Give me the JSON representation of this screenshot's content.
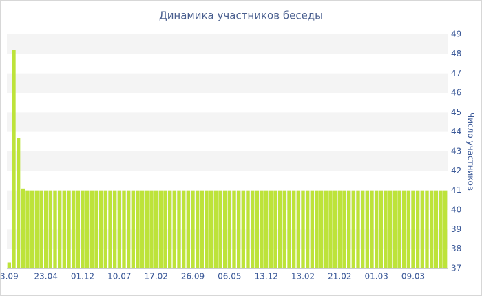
{
  "chart_data": {
    "type": "bar",
    "title": "Динамика участников беседы",
    "y_label": "Число участников",
    "categories": [
      "3.09",
      null,
      null,
      null,
      null,
      null,
      null,
      null,
      "23.04",
      null,
      null,
      null,
      null,
      null,
      null,
      null,
      "01.12",
      null,
      null,
      null,
      null,
      null,
      null,
      null,
      "10.07",
      null,
      null,
      null,
      null,
      null,
      null,
      null,
      "17.02",
      null,
      null,
      null,
      null,
      null,
      null,
      null,
      "26.09",
      null,
      null,
      null,
      null,
      null,
      null,
      null,
      "06.05",
      null,
      null,
      null,
      null,
      null,
      null,
      null,
      "13.12",
      null,
      null,
      null,
      null,
      null,
      null,
      null,
      "13.02",
      null,
      null,
      null,
      null,
      null,
      null,
      null,
      "21.02",
      null,
      null,
      null,
      null,
      null,
      null,
      null,
      "01.03",
      null,
      null,
      null,
      null,
      null,
      null,
      null,
      "09.03",
      null,
      null,
      null,
      null,
      null,
      null,
      null
    ],
    "values": [
      37.3,
      48.2,
      43.7,
      41.1,
      41,
      41,
      41,
      41,
      41,
      41,
      41,
      41,
      41,
      41,
      41,
      41,
      41,
      41,
      41,
      41,
      41,
      41,
      41,
      41,
      41,
      41,
      41,
      41,
      41,
      41,
      41,
      41,
      41,
      41,
      41,
      41,
      41,
      41,
      41,
      41,
      41,
      41,
      41,
      41,
      41,
      41,
      41,
      41,
      41,
      41,
      41,
      41,
      41,
      41,
      41,
      41,
      41,
      41,
      41,
      41,
      41,
      41,
      41,
      41,
      41,
      41,
      41,
      41,
      41,
      41,
      41,
      41,
      41,
      41,
      41,
      41,
      41,
      41,
      41,
      41,
      41,
      41,
      41,
      41,
      41,
      41,
      41,
      41,
      41,
      41,
      41,
      41,
      41,
      41,
      41,
      41
    ],
    "color": "#bde33a",
    "ylim": [
      37,
      49
    ],
    "yticks": [
      37,
      38,
      39,
      40,
      41,
      42,
      43,
      44,
      45,
      46,
      47,
      48,
      49
    ],
    "y_axis_side": "right",
    "striped_grid": true
  }
}
